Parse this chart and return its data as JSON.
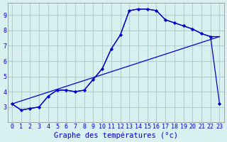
{
  "background_color": "#d8f0f0",
  "grid_color": "#b0d0d0",
  "line_color": "#0000cc",
  "xlabel": "Graphe des températures (°c)",
  "xlabel_color": "#0000cc",
  "xlim": [
    -0.5,
    23.5
  ],
  "ylim": [
    2.0,
    9.8
  ],
  "xticks": [
    0,
    1,
    2,
    3,
    4,
    5,
    6,
    7,
    8,
    9,
    10,
    11,
    12,
    13,
    14,
    15,
    16,
    17,
    18,
    19,
    20,
    21,
    22,
    23
  ],
  "yticks": [
    3,
    4,
    5,
    6,
    7,
    8,
    9
  ],
  "curve1_x": [
    0,
    1,
    2,
    3,
    4,
    5,
    6,
    7,
    8,
    9,
    10,
    11,
    12,
    13,
    14,
    15,
    16,
    17,
    18,
    19,
    20,
    21,
    22,
    23
  ],
  "curve1_y": [
    3.2,
    2.8,
    2.9,
    3.0,
    3.7,
    4.1,
    4.1,
    4.0,
    4.1,
    4.8,
    5.5,
    6.8,
    7.7,
    9.3,
    9.4,
    9.4,
    9.3,
    8.7,
    8.5,
    8.3,
    8.1,
    7.8,
    7.6,
    3.2
  ],
  "curve2_x": [
    0,
    1,
    2,
    3,
    4,
    5,
    6,
    7,
    8,
    9,
    10,
    11,
    12,
    13,
    14,
    15,
    16,
    17,
    18,
    19,
    20,
    21,
    22,
    23
  ],
  "curve2_y": [
    3.2,
    2.8,
    2.9,
    3.0,
    3.7,
    4.1,
    4.1,
    4.0,
    4.1,
    4.8,
    5.5,
    6.8,
    7.7,
    9.3,
    9.4,
    9.4,
    9.3,
    8.7,
    8.5,
    8.3,
    8.1,
    7.8,
    7.6,
    7.6
  ],
  "curve3_x": [
    0,
    23
  ],
  "curve3_y": [
    3.2,
    7.6
  ],
  "tick_color": "#0000cc",
  "tick_fontsize": 6,
  "xlabel_fontsize": 7.5
}
